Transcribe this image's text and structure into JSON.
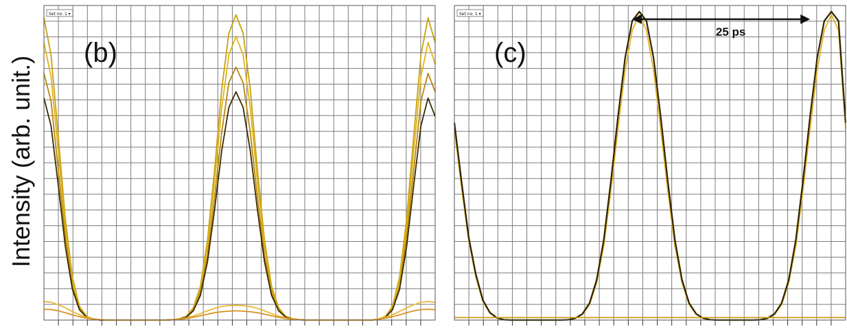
{
  "chart_data": [
    {
      "type": "line",
      "panel_label": "(b)",
      "selector": "Set no. 1",
      "ylabel": "Intensity (arb. unit.)",
      "xlim": [
        0,
        27.5
      ],
      "ylim": [
        0,
        1.02
      ],
      "grid": true,
      "x": [
        0,
        0.5,
        1,
        1.5,
        2,
        2.5,
        3,
        3.5,
        4,
        4.5,
        5,
        5.5,
        6,
        6.5,
        7,
        7.5,
        8,
        8.5,
        9,
        9.5,
        10,
        10.5,
        11,
        11.5,
        12,
        12.5,
        13,
        13.5,
        14,
        14.5,
        15,
        15.5,
        16,
        16.5,
        17,
        17.5,
        18,
        18.5,
        19,
        19.5,
        20,
        20.5,
        21,
        21.5,
        22,
        22.5,
        23,
        23.5,
        24,
        24.5,
        25,
        25.5,
        26,
        26.5,
        27,
        27.5
      ],
      "series": [
        {
          "color": "#C8A010",
          "values": [
            0.98,
            0.86,
            0.6,
            0.33,
            0.14,
            0.045,
            0.012,
            0.003,
            0,
            0,
            0,
            0,
            0,
            0,
            0,
            0,
            0,
            0,
            0.001,
            0.004,
            0.012,
            0.04,
            0.11,
            0.26,
            0.49,
            0.75,
            0.93,
            0.99,
            0.93,
            0.75,
            0.49,
            0.26,
            0.11,
            0.04,
            0.012,
            0.004,
            0.001,
            0,
            0,
            0,
            0,
            0,
            0,
            0,
            0,
            0,
            0,
            0.003,
            0.012,
            0.045,
            0.14,
            0.33,
            0.6,
            0.86,
            0.98,
            0.9
          ]
        },
        {
          "color": "#E0B418",
          "values": [
            0.9,
            0.79,
            0.55,
            0.3,
            0.13,
            0.042,
            0.011,
            0.003,
            0,
            0,
            0,
            0,
            0,
            0,
            0,
            0,
            0,
            0,
            0.001,
            0.004,
            0.011,
            0.037,
            0.1,
            0.24,
            0.45,
            0.69,
            0.86,
            0.92,
            0.86,
            0.69,
            0.45,
            0.24,
            0.1,
            0.037,
            0.011,
            0.004,
            0.001,
            0,
            0,
            0,
            0,
            0,
            0,
            0,
            0,
            0,
            0,
            0.003,
            0.011,
            0.042,
            0.13,
            0.3,
            0.55,
            0.79,
            0.9,
            0.83
          ]
        },
        {
          "color": "#B8860B",
          "values": [
            0.8,
            0.71,
            0.49,
            0.27,
            0.11,
            0.037,
            0.01,
            0.002,
            0,
            0,
            0,
            0,
            0,
            0,
            0,
            0,
            0,
            0,
            0.001,
            0.003,
            0.01,
            0.033,
            0.09,
            0.21,
            0.4,
            0.61,
            0.77,
            0.82,
            0.77,
            0.61,
            0.4,
            0.21,
            0.09,
            0.033,
            0.01,
            0.003,
            0.001,
            0,
            0,
            0,
            0,
            0,
            0,
            0,
            0,
            0,
            0,
            0.002,
            0.01,
            0.037,
            0.11,
            0.27,
            0.49,
            0.71,
            0.8,
            0.74
          ]
        },
        {
          "color": "#3A2A00",
          "values": [
            0.72,
            0.63,
            0.44,
            0.24,
            0.1,
            0.033,
            0.009,
            0.002,
            0,
            0,
            0,
            0,
            0,
            0,
            0,
            0,
            0,
            0,
            0.001,
            0.003,
            0.009,
            0.03,
            0.08,
            0.19,
            0.36,
            0.55,
            0.69,
            0.74,
            0.69,
            0.55,
            0.36,
            0.19,
            0.08,
            0.03,
            0.009,
            0.003,
            0.001,
            0,
            0,
            0,
            0,
            0,
            0,
            0,
            0,
            0,
            0,
            0.002,
            0.009,
            0.033,
            0.1,
            0.24,
            0.44,
            0.63,
            0.72,
            0.66
          ]
        },
        {
          "color": "#E8B830",
          "values": [
            0.06,
            0.058,
            0.05,
            0.04,
            0.028,
            0.017,
            0.009,
            0.004,
            0.001,
            0,
            0,
            0,
            0,
            0,
            0,
            0,
            0,
            0,
            0.001,
            0.003,
            0.007,
            0.013,
            0.021,
            0.03,
            0.038,
            0.044,
            0.047,
            0.048,
            0.047,
            0.044,
            0.038,
            0.03,
            0.021,
            0.013,
            0.007,
            0.003,
            0.001,
            0,
            0,
            0,
            0,
            0,
            0,
            0,
            0,
            0,
            0,
            0.004,
            0.009,
            0.017,
            0.028,
            0.04,
            0.05,
            0.058,
            0.06,
            0.058
          ]
        },
        {
          "color": "#D89020",
          "values": [
            0.035,
            0.034,
            0.03,
            0.024,
            0.017,
            0.011,
            0.006,
            0.003,
            0.001,
            0,
            0,
            0,
            0,
            0,
            0,
            0,
            0,
            0,
            0.001,
            0.002,
            0.005,
            0.009,
            0.014,
            0.019,
            0.024,
            0.027,
            0.029,
            0.03,
            0.029,
            0.027,
            0.024,
            0.019,
            0.014,
            0.009,
            0.005,
            0.002,
            0.001,
            0,
            0,
            0,
            0,
            0,
            0,
            0,
            0,
            0,
            0,
            0.003,
            0.006,
            0.011,
            0.017,
            0.024,
            0.03,
            0.034,
            0.035,
            0.034
          ]
        }
      ]
    },
    {
      "type": "line",
      "panel_label": "(c)",
      "selector": "Set no. 1",
      "annotation": "25 ps",
      "annotation_span": [
        12.5,
        25
      ],
      "xlim": [
        0,
        27.5
      ],
      "ylim": [
        0,
        1.02
      ],
      "grid": true,
      "x": [
        0,
        0.5,
        1,
        1.5,
        2,
        2.5,
        3,
        3.5,
        4,
        4.5,
        5,
        5.5,
        6,
        6.5,
        7,
        7.5,
        8,
        8.5,
        9,
        9.5,
        10,
        10.5,
        11,
        11.5,
        12,
        12.5,
        13,
        13.5,
        14,
        14.5,
        15,
        15.5,
        16,
        16.5,
        17,
        17.5,
        18,
        18.5,
        19,
        19.5,
        20,
        20.5,
        21,
        21.5,
        22,
        22.5,
        23,
        23.5,
        24,
        24.5,
        25,
        25.5,
        26,
        26.5,
        27,
        27.5
      ],
      "series": [
        {
          "color": "#E0B020",
          "values": [
            0.62,
            0.43,
            0.26,
            0.14,
            0.06,
            0.022,
            0.006,
            0.001,
            0,
            0,
            0,
            0,
            0,
            0,
            0,
            0,
            0.001,
            0.005,
            0.018,
            0.05,
            0.12,
            0.24,
            0.42,
            0.62,
            0.81,
            0.94,
            0.99,
            0.94,
            0.81,
            0.62,
            0.42,
            0.24,
            0.12,
            0.05,
            0.018,
            0.005,
            0.001,
            0,
            0,
            0,
            0,
            0,
            0,
            0.001,
            0.005,
            0.018,
            0.05,
            0.12,
            0.24,
            0.42,
            0.62,
            0.81,
            0.94,
            0.99,
            0.94,
            0.62
          ]
        },
        {
          "color": "#2E2200",
          "values": [
            0.64,
            0.45,
            0.27,
            0.15,
            0.065,
            0.024,
            0.007,
            0.001,
            0,
            0,
            0,
            0,
            0,
            0,
            0,
            0,
            0.001,
            0.006,
            0.02,
            0.055,
            0.13,
            0.26,
            0.45,
            0.66,
            0.85,
            0.97,
            1.0,
            0.97,
            0.85,
            0.66,
            0.45,
            0.26,
            0.13,
            0.055,
            0.02,
            0.006,
            0.001,
            0,
            0,
            0,
            0,
            0,
            0,
            0.001,
            0.006,
            0.02,
            0.055,
            0.13,
            0.26,
            0.45,
            0.66,
            0.85,
            0.97,
            1.0,
            0.97,
            0.64
          ]
        },
        {
          "color": "#C89A10",
          "values": [
            0.008,
            0.008,
            0.008,
            0.008,
            0.008,
            0.008,
            0.008,
            0.008,
            0.008,
            0.008,
            0.008,
            0.008,
            0.008,
            0.008,
            0.008,
            0.008,
            0.008,
            0.008,
            0.008,
            0.008,
            0.008,
            0.008,
            0.008,
            0.008,
            0.008,
            0.008,
            0.008,
            0.008,
            0.008,
            0.008,
            0.008,
            0.008,
            0.008,
            0.008,
            0.008,
            0.008,
            0.008,
            0.008,
            0.008,
            0.008,
            0.008,
            0.008,
            0.008,
            0.008,
            0.008,
            0.008,
            0.008,
            0.008,
            0.008,
            0.008,
            0.008,
            0.008,
            0.008,
            0.008,
            0.008,
            0.008
          ]
        }
      ]
    }
  ]
}
